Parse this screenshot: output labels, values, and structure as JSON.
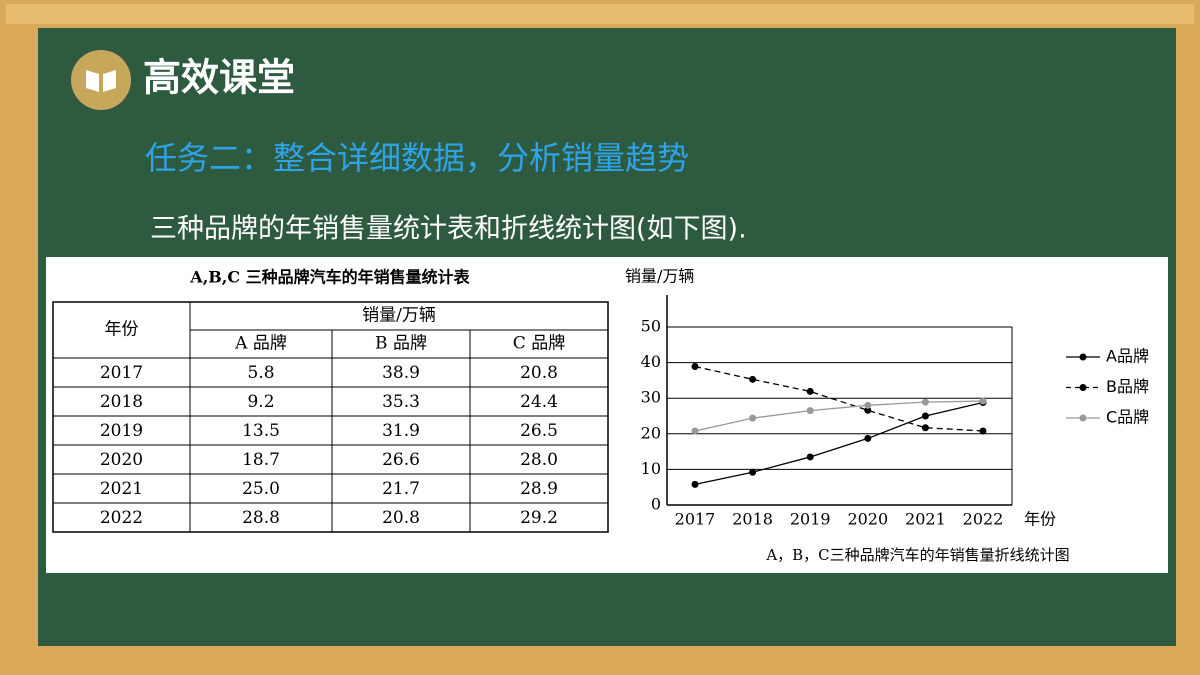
{
  "header": {
    "title": "高效课堂",
    "subtitle": "任务二：整合详细数据，分析销量趋势",
    "description": "三种品牌的年销售量统计表和折线统计图(如下图)."
  },
  "table": {
    "title": "A,B,C 三种品牌汽车的年销售量统计表",
    "corner": "年份",
    "group": "销量/万辆",
    "columns": [
      "A 品牌",
      "B 品牌",
      "C 品牌"
    ],
    "rows": [
      [
        "2017",
        "5.8",
        "38.9",
        "20.8"
      ],
      [
        "2018",
        "9.2",
        "35.3",
        "24.4"
      ],
      [
        "2019",
        "13.5",
        "31.9",
        "26.5"
      ],
      [
        "2020",
        "18.7",
        "26.6",
        "28.0"
      ],
      [
        "2021",
        "25.0",
        "21.7",
        "28.9"
      ],
      [
        "2022",
        "28.8",
        "20.8",
        "29.2"
      ]
    ]
  },
  "chart_data": {
    "type": "line",
    "ylabel": "销量/万辆",
    "xlabel": "年份",
    "caption": "A，B，C三种品牌汽车的年销售量折线统计图",
    "categories": [
      "2017",
      "2018",
      "2019",
      "2020",
      "2021",
      "2022"
    ],
    "ylim": [
      0,
      50
    ],
    "yticks": [
      0,
      10,
      20,
      30,
      40,
      50
    ],
    "grid": true,
    "series": [
      {
        "name": "A品牌",
        "color": "#000000",
        "dashed": false,
        "values": [
          5.8,
          9.2,
          13.5,
          18.7,
          25.0,
          28.8
        ]
      },
      {
        "name": "B品牌",
        "color": "#000000",
        "dashed": true,
        "values": [
          38.9,
          35.3,
          31.9,
          26.6,
          21.7,
          20.8
        ]
      },
      {
        "name": "C品牌",
        "color": "#999999",
        "dashed": false,
        "values": [
          20.8,
          24.4,
          26.5,
          28.0,
          28.9,
          29.2
        ]
      }
    ]
  }
}
